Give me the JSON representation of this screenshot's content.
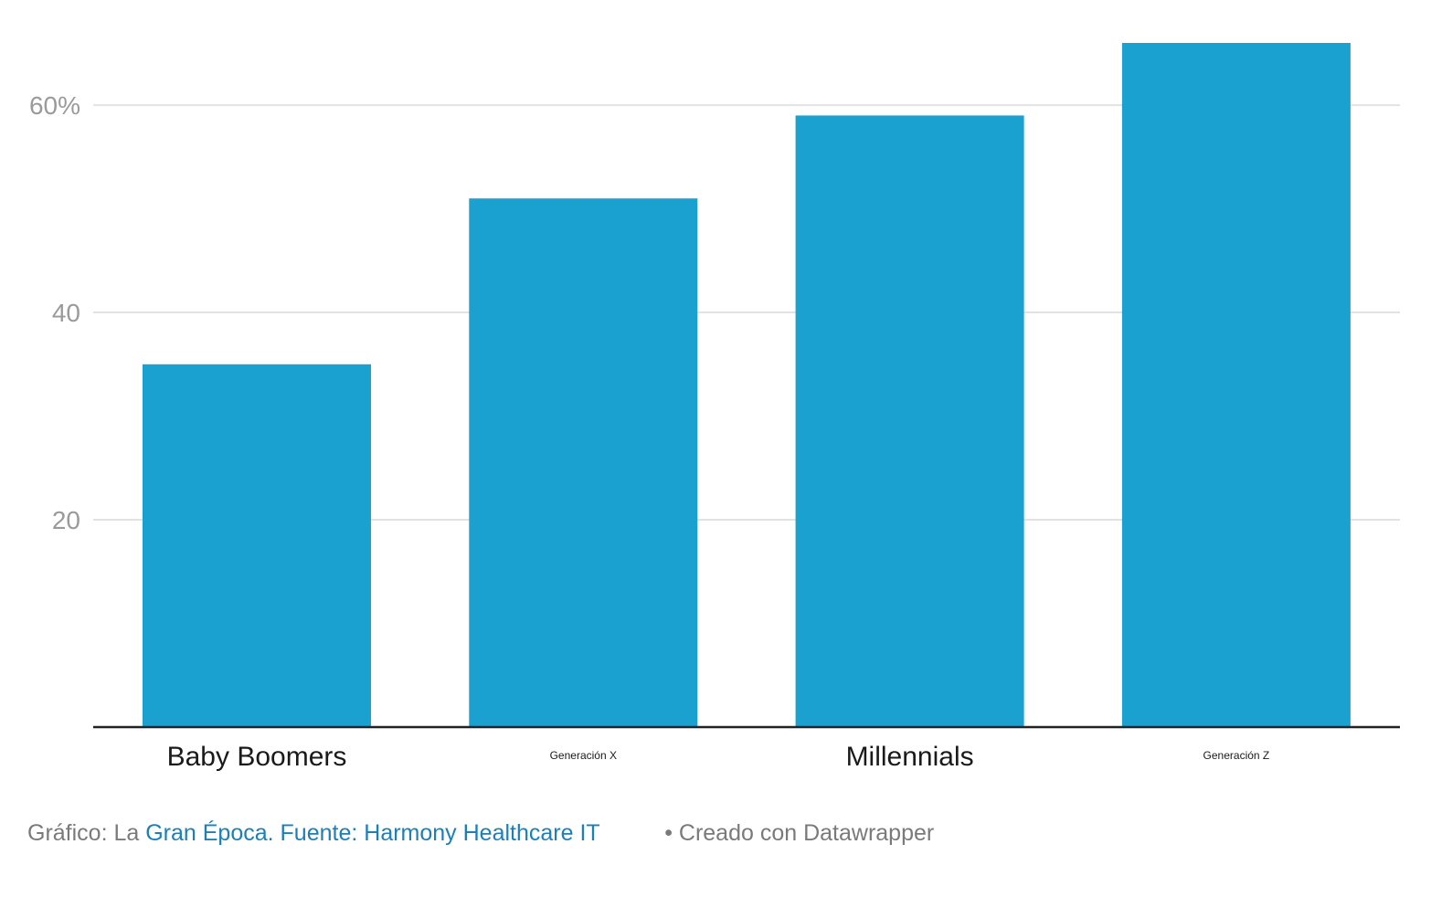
{
  "colors": {
    "bar": "#1ba1cf",
    "grid": "#e2e2e2",
    "baseline": "#222222",
    "tick_text": "#9a9a9a",
    "link": "#1d7fb5"
  },
  "chart_data": {
    "type": "bar",
    "categories": [
      "Baby Boomers",
      "Generación X",
      "Millennials",
      "Generación Z"
    ],
    "category_label_sizes": [
      "large",
      "small",
      "large",
      "small"
    ],
    "values": [
      35,
      51,
      59,
      66
    ],
    "ylim": [
      0,
      66
    ],
    "yticks": [
      20,
      40,
      60
    ],
    "ytick_labels": [
      "20",
      "40",
      "60%"
    ],
    "grid": true,
    "xlabel": "",
    "ylabel": ""
  },
  "footer": {
    "prefix": "Gráfico: La",
    "source_link": "Gran Época. Fuente: Harmony Healthcare IT",
    "credit": "• Creado con Datawrapper"
  }
}
